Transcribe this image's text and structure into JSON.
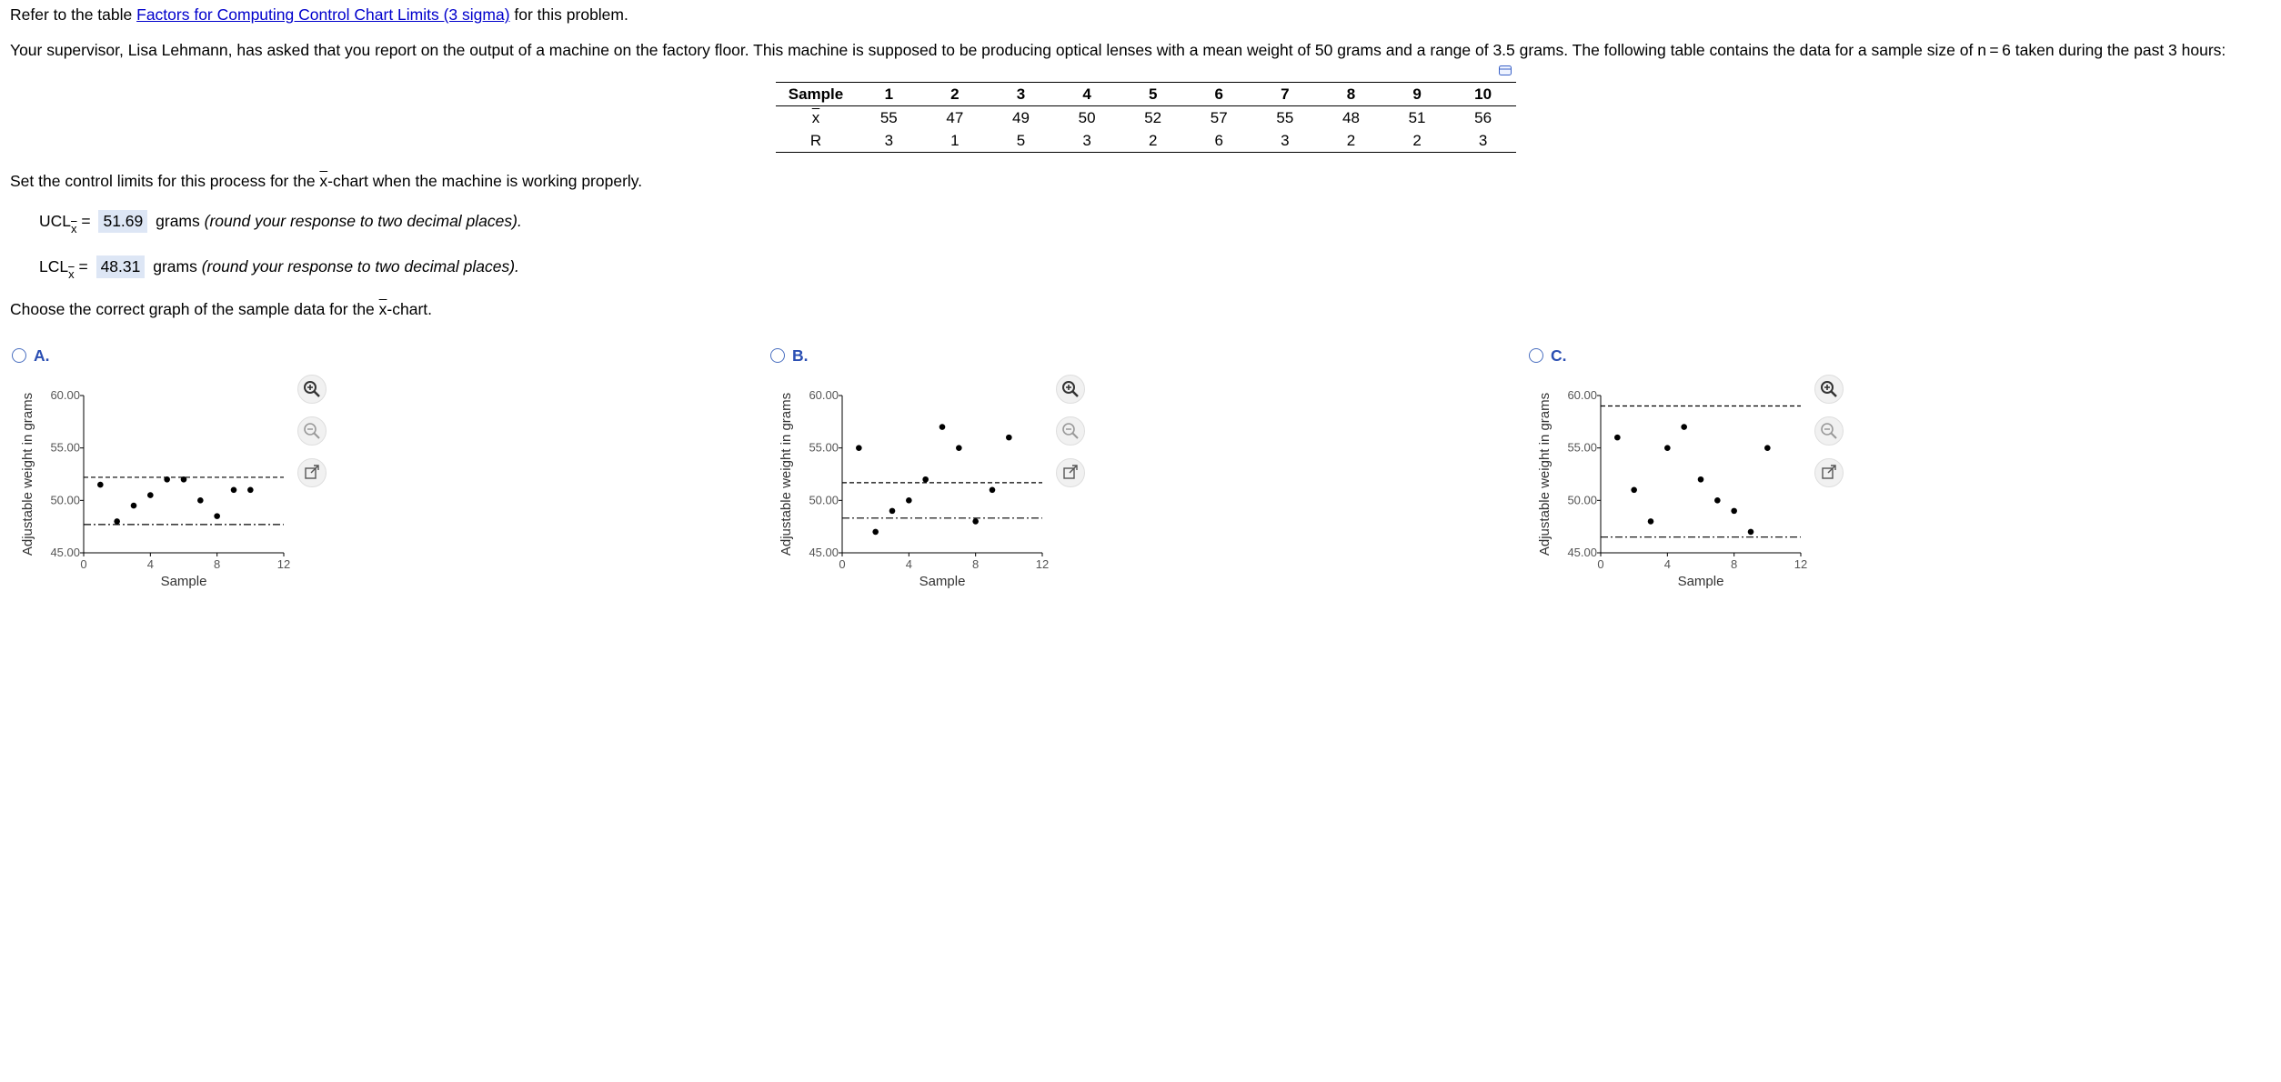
{
  "intro": {
    "prefix": "Refer to the table ",
    "link_text": "Factors for Computing Control Chart Limits (3 sigma)",
    "suffix": " for this problem."
  },
  "problem_text": "Your supervisor, Lisa Lehmann, has asked that you report on the output of a machine on the factory floor. This machine is supposed to be producing optical lenses with a mean weight of 50 grams and a range of 3.5 grams. The following table contains the data for a sample size of n = 6 taken during the past 3 hours:",
  "table": {
    "header_label": "Sample",
    "samples": [
      "1",
      "2",
      "3",
      "4",
      "5",
      "6",
      "7",
      "8",
      "9",
      "10"
    ],
    "xbar_label": "x",
    "xbar_values": [
      "55",
      "47",
      "49",
      "50",
      "52",
      "57",
      "55",
      "48",
      "51",
      "56"
    ],
    "r_label": "R",
    "r_values": [
      "3",
      "1",
      "5",
      "3",
      "2",
      "6",
      "3",
      "2",
      "2",
      "3"
    ]
  },
  "set_limits": {
    "prefix": "Set the control limits for this process for the ",
    "xbar": "x",
    "suffix": "-chart when the machine is working properly."
  },
  "ucl": {
    "label": "UCL",
    "sub": "x",
    "eq": " = ",
    "value": "51.69",
    "unit": " grams ",
    "note": "(round your response to two decimal places)."
  },
  "lcl": {
    "label": "LCL",
    "sub": "x",
    "eq": " = ",
    "value": "48.31",
    "unit": " grams ",
    "note": "(round your response to two decimal places)."
  },
  "choose": {
    "prefix": "Choose the correct graph of the sample data for the ",
    "xbar": "x",
    "suffix": "-chart."
  },
  "options": [
    {
      "label": "A."
    },
    {
      "label": "B."
    },
    {
      "label": "C."
    }
  ],
  "chart_common": {
    "ylabel": "Adjustable weight in grams",
    "xlabel": "Sample",
    "yticks": [
      "60.00",
      "55.00",
      "50.00",
      "45.00"
    ],
    "xticks": [
      "0",
      "4",
      "8",
      "12"
    ]
  },
  "chart_data": [
    {
      "type": "scatter",
      "xlabel": "Sample",
      "ylabel": "Adjustable weight in grams",
      "xlim": [
        0,
        12
      ],
      "ylim": [
        45,
        60
      ],
      "x": [
        1,
        2,
        3,
        4,
        5,
        6,
        7,
        8,
        9,
        10
      ],
      "y": [
        51.5,
        48,
        49.5,
        50.5,
        52,
        52,
        50,
        48.5,
        51,
        51
      ],
      "ucl": 52.2,
      "lcl": 47.7
    },
    {
      "type": "scatter",
      "xlabel": "Sample",
      "ylabel": "Adjustable weight in grams",
      "xlim": [
        0,
        12
      ],
      "ylim": [
        45,
        60
      ],
      "x": [
        1,
        2,
        3,
        4,
        5,
        6,
        7,
        8,
        9,
        10
      ],
      "y": [
        55,
        47,
        49,
        50,
        52,
        57,
        55,
        48,
        51,
        56
      ],
      "ucl": 51.69,
      "lcl": 48.31
    },
    {
      "type": "scatter",
      "xlabel": "Sample",
      "ylabel": "Adjustable weight in grams",
      "xlim": [
        0,
        12
      ],
      "ylim": [
        45,
        60
      ],
      "x": [
        1,
        2,
        3,
        4,
        5,
        6,
        7,
        8,
        9,
        10
      ],
      "y": [
        56,
        51,
        48,
        55,
        57,
        52,
        50,
        49,
        47,
        55
      ],
      "ucl": 59.0,
      "lcl": 46.5
    }
  ]
}
